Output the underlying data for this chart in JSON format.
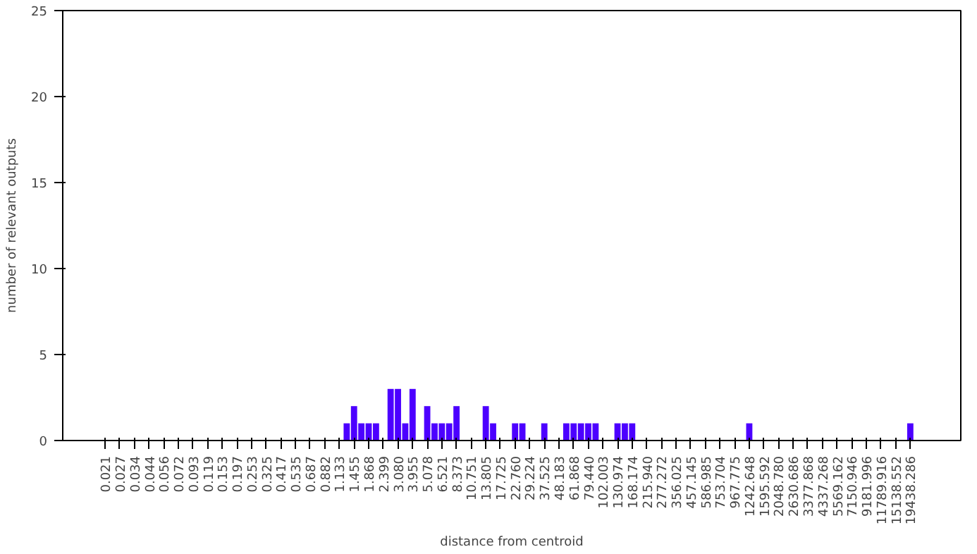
{
  "chart_data": {
    "type": "bar",
    "xlabel": "distance from centroid",
    "ylabel": "number of relevant outputs",
    "categories": [
      "0.021",
      null,
      "0.027",
      null,
      "0.034",
      null,
      "0.044",
      null,
      "0.056",
      null,
      "0.072",
      null,
      "0.093",
      null,
      "0.119",
      null,
      "0.153",
      null,
      "0.197",
      null,
      "0.253",
      null,
      "0.325",
      null,
      "0.417",
      null,
      "0.535",
      null,
      "0.687",
      null,
      "0.882",
      null,
      "1.133",
      null,
      "1.455",
      null,
      "1.868",
      null,
      "2.399",
      null,
      "3.080",
      null,
      "3.955",
      null,
      "5.078",
      null,
      "6.521",
      null,
      "8.373",
      null,
      "10.751",
      null,
      "13.805",
      null,
      "17.725",
      null,
      "22.760",
      null,
      "29.224",
      null,
      "37.525",
      null,
      "48.183",
      null,
      "61.868",
      null,
      "79.440",
      null,
      "102.003",
      null,
      "130.974",
      null,
      "168.174",
      null,
      "215.940",
      null,
      "277.272",
      null,
      "356.025",
      null,
      "457.145",
      null,
      "586.985",
      null,
      "753.704",
      null,
      "967.775",
      null,
      "1242.648",
      null,
      "1595.592",
      null,
      "2048.780",
      null,
      "2630.686",
      null,
      "3377.868",
      null,
      "4337.268",
      null,
      "5569.162",
      null,
      "7150.946",
      null,
      "9181.996",
      null,
      "11789.916",
      null,
      "15138.552",
      null,
      "19438.286"
    ],
    "values": [
      0,
      0,
      0,
      0,
      0,
      0,
      0,
      0,
      0,
      0,
      0,
      0,
      0,
      0,
      0,
      0,
      0,
      0,
      0,
      0,
      0,
      0,
      0,
      0,
      0,
      0,
      0,
      0,
      0,
      0,
      0,
      0,
      0,
      1,
      2,
      1,
      1,
      1,
      0,
      3,
      3,
      1,
      3,
      0,
      2,
      1,
      1,
      1,
      2,
      0,
      0,
      0,
      2,
      1,
      0,
      0,
      1,
      1,
      0,
      0,
      1,
      0,
      0,
      1,
      1,
      1,
      1,
      1,
      0,
      0,
      1,
      1,
      1,
      0,
      0,
      0,
      0,
      0,
      0,
      0,
      0,
      0,
      0,
      0,
      0,
      0,
      0,
      0,
      1,
      0,
      0,
      0,
      0,
      0,
      0,
      0,
      0,
      0,
      0,
      0,
      0,
      0,
      0,
      0,
      0,
      0,
      0,
      0,
      0,
      0,
      1
    ],
    "color": "#4c00ff",
    "ylim": [
      0,
      25
    ],
    "yticks": [
      0,
      5,
      10,
      15,
      20,
      25
    ]
  }
}
